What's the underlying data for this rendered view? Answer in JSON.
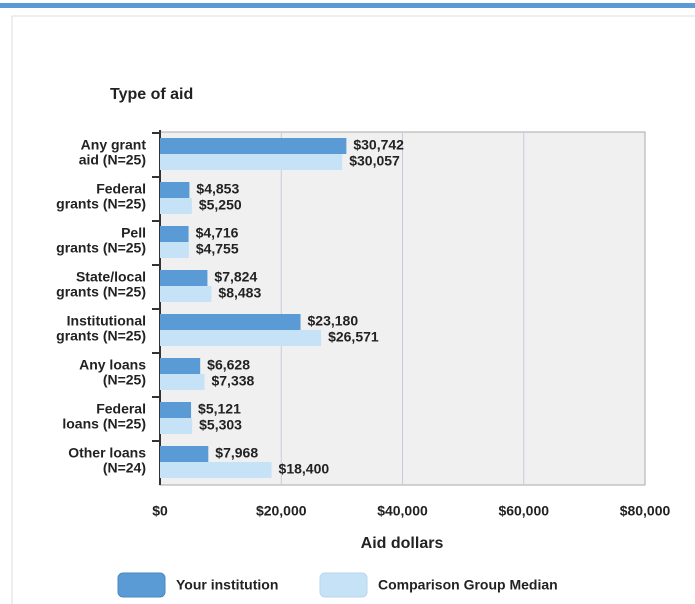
{
  "chart_data": {
    "type": "hbar",
    "title": "Type of aid",
    "x_label": "Aid dollars",
    "categories": [
      [
        "Any grant",
        "aid (N=25)"
      ],
      [
        "Federal",
        "grants (N=25)"
      ],
      [
        "Pell",
        "grants (N=25)"
      ],
      [
        "State/local",
        "grants (N=25)"
      ],
      [
        "Institutional",
        "grants (N=25)"
      ],
      [
        "Any loans",
        "(N=25)"
      ],
      [
        "Federal",
        "loans (N=25)"
      ],
      [
        "Other loans",
        "(N=24)"
      ]
    ],
    "series": [
      {
        "name": "Your institution",
        "color": "#5b9bd5",
        "values": [
          30742,
          4853,
          4716,
          7824,
          23180,
          6628,
          5121,
          7968
        ],
        "value_labels": [
          "$30,742",
          "$4,853",
          "$4,716",
          "$7,824",
          "$23,180",
          "$6,628",
          "$5,121",
          "$7,968"
        ]
      },
      {
        "name": "Comparison Group Median",
        "color": "#c6e2f7",
        "values": [
          30057,
          5250,
          4755,
          8483,
          26571,
          7338,
          5303,
          18400
        ],
        "value_labels": [
          "$30,057",
          "$5,250",
          "$4,755",
          "$8,483",
          "$26,571",
          "$7,338",
          "$5,303",
          "$18,400"
        ]
      }
    ],
    "xlim": [
      0,
      80000
    ],
    "xticks": [
      {
        "value": 0,
        "label": "$0"
      },
      {
        "value": 20000,
        "label": "$20,000"
      },
      {
        "value": 40000,
        "label": "$40,000"
      },
      {
        "value": 60000,
        "label": "$60,000"
      },
      {
        "value": 80000,
        "label": "$80,000"
      }
    ],
    "grid": true
  }
}
